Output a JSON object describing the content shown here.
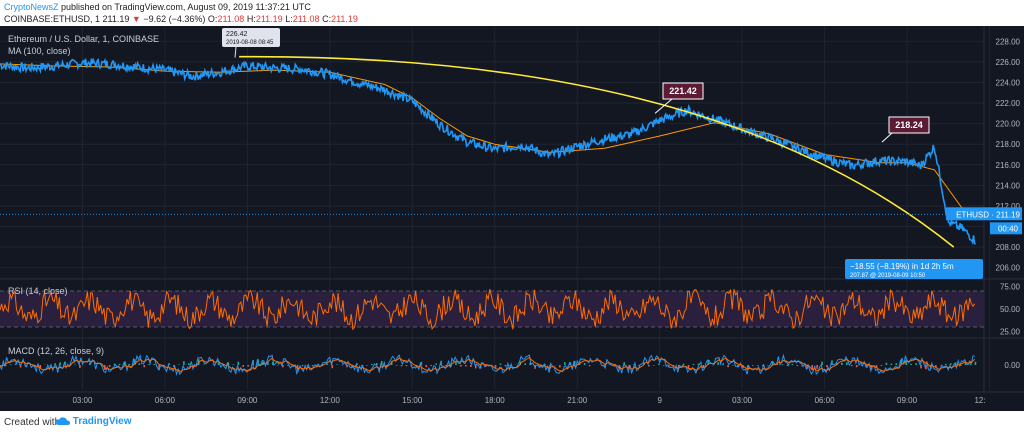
{
  "header": {
    "publisher": "CryptoNewsZ",
    "published_text": " published on TradingView.com, August 09, 2019 11:37:21 UTC",
    "symbol": "COINBASE:ETHUSD, 1",
    "last": "211.19",
    "change_arrow": "▼",
    "change": "−9.62 (−4.36%)",
    "o_label": "O:",
    "o_val": "211.08",
    "h_label": "H:",
    "h_val": "211.19",
    "l_label": "L:",
    "l_val": "211.08",
    "c_label": "C:",
    "c_val": "211.19"
  },
  "legend": {
    "title": "Ethereum / U.S. Dollar, 1, COINBASE",
    "ma": "MA (100, close)",
    "rsi": "RSI (14, close)",
    "macd": "MACD (12, 26, close, 9)"
  },
  "footer": {
    "created": "Created with",
    "brand": "TradingView"
  },
  "colors": {
    "background": "#131722",
    "price": "#2196f3",
    "ma": "#ff9800",
    "trend": "#ffeb3b",
    "rsi": "#ff6d00",
    "rsi_band": "#2a1f3d",
    "macd": "#2196f3",
    "signal": "#ff6d00",
    "hist_up": "#26a69a",
    "hist_down": "#ef5350",
    "callout": "#5d1a35"
  },
  "chart_data": [
    {
      "type": "line",
      "title": "Ethereum / U.S. Dollar, 1, COINBASE",
      "xlabel": "",
      "ylabel": "",
      "x_ticks": [
        "03:00",
        "06:00",
        "09:00",
        "12:00",
        "15:00",
        "18:00",
        "21:00",
        "9",
        "03:00",
        "06:00",
        "09:00",
        "12:"
      ],
      "y_ticks": [
        "206.00",
        "208.00",
        "210.00",
        "212.00",
        "214.00",
        "216.00",
        "218.00",
        "220.00",
        "222.00",
        "224.00",
        "226.00",
        "228.00"
      ],
      "ylim": [
        205,
        229
      ],
      "x_range_hours": [
        0,
        35.8
      ],
      "series": [
        {
          "name": "ETHUSD",
          "x": [
            0,
            1,
            2,
            3,
            4,
            5,
            6,
            7,
            8,
            9,
            10,
            11,
            12,
            13,
            14,
            15,
            16,
            17,
            18,
            19,
            20,
            21,
            22,
            23,
            24,
            25,
            26,
            27,
            28,
            29,
            30,
            31,
            32,
            33,
            33.5,
            34,
            34.5,
            35,
            35.5
          ],
          "values": [
            225.7,
            225.4,
            225.6,
            225.9,
            225.8,
            225.5,
            225.2,
            224.6,
            225.0,
            225.6,
            225.4,
            225.3,
            224.8,
            224.0,
            223.3,
            222.2,
            219.9,
            218.2,
            217.5,
            217.9,
            216.9,
            217.8,
            218.5,
            219.0,
            220.3,
            221.3,
            220.4,
            219.5,
            218.6,
            217.6,
            216.6,
            215.9,
            216.4,
            216.3,
            215.9,
            217.8,
            210.4,
            209.8,
            208.6
          ]
        },
        {
          "name": "MA (100, close)",
          "x": [
            0,
            2,
            4,
            6,
            8,
            10,
            12,
            14,
            15,
            16,
            17,
            18,
            20,
            22,
            24,
            26,
            28,
            30,
            32,
            33,
            34,
            35
          ],
          "values": [
            225.8,
            225.6,
            225.5,
            225.1,
            225.0,
            225.2,
            225.0,
            223.8,
            222.5,
            220.5,
            218.8,
            218.0,
            217.2,
            217.6,
            218.8,
            220.1,
            219.0,
            217.0,
            216.2,
            216.2,
            215.5,
            211.8
          ]
        }
      ],
      "last_price_label": "ETHUSD · 211.19",
      "countdown": "00:40",
      "annotations": [
        {
          "text": "226.42",
          "sub": "2019-08-08 08:45"
        },
        {
          "text": "221.42"
        },
        {
          "text": "218.24"
        },
        {
          "text": "−18.55 (−8.19%) in 1d 2h 5m",
          "sub": "207.87 @ 2019-08-09 10:50"
        }
      ]
    },
    {
      "type": "line",
      "title": "RSI (14, close)",
      "y_ticks": [
        "25.00",
        "50.00",
        "75.00"
      ],
      "ylim": [
        20,
        80
      ],
      "bands": [
        30,
        70
      ]
    },
    {
      "type": "line",
      "title": "MACD (12, 26, close, 9)",
      "y_ticks": [
        "0.00"
      ],
      "ylim": [
        -1.5,
        1.5
      ]
    }
  ]
}
